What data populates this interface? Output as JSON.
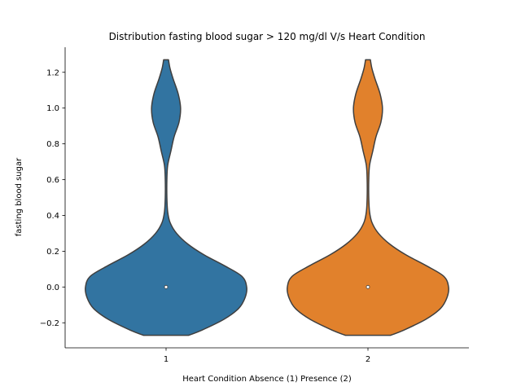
{
  "chart_data": {
    "type": "violin",
    "title": "Distribution fasting blood sugar > 120 mg/dl V/s Heart Condition",
    "xlabel": "Heart Condition Absence (1) Presence (2)",
    "ylabel": "fasting blood sugar",
    "categories": [
      "1",
      "2"
    ],
    "colors": [
      "#3274a1",
      "#e1812c"
    ],
    "ylim": [
      -0.34,
      1.34
    ],
    "yticks": [
      -0.2,
      0.0,
      0.2,
      0.4,
      0.6,
      0.8,
      1.0,
      1.2
    ],
    "ytick_labels": [
      "−0.2",
      "0.0",
      "0.2",
      "0.4",
      "0.6",
      "0.8",
      "1.0",
      "1.2"
    ],
    "grid": false,
    "series": [
      {
        "category": "1",
        "median": 0.0,
        "range": [
          -0.27,
          1.27
        ],
        "density_profile": [
          {
            "y": -0.27,
            "w": 0.28
          },
          {
            "y": -0.24,
            "w": 0.45
          },
          {
            "y": -0.18,
            "w": 0.72
          },
          {
            "y": -0.12,
            "w": 0.9
          },
          {
            "y": -0.06,
            "w": 0.98
          },
          {
            "y": 0.0,
            "w": 1.0
          },
          {
            "y": 0.06,
            "w": 0.94
          },
          {
            "y": 0.12,
            "w": 0.72
          },
          {
            "y": 0.18,
            "w": 0.47
          },
          {
            "y": 0.24,
            "w": 0.27
          },
          {
            "y": 0.3,
            "w": 0.13
          },
          {
            "y": 0.36,
            "w": 0.05
          },
          {
            "y": 0.42,
            "w": 0.02
          },
          {
            "y": 0.5,
            "w": 0.01
          },
          {
            "y": 0.6,
            "w": 0.01
          },
          {
            "y": 0.68,
            "w": 0.02
          },
          {
            "y": 0.76,
            "w": 0.06
          },
          {
            "y": 0.84,
            "w": 0.1
          },
          {
            "y": 0.92,
            "w": 0.16
          },
          {
            "y": 1.0,
            "w": 0.18
          },
          {
            "y": 1.08,
            "w": 0.15
          },
          {
            "y": 1.16,
            "w": 0.09
          },
          {
            "y": 1.22,
            "w": 0.05
          },
          {
            "y": 1.27,
            "w": 0.03
          }
        ]
      },
      {
        "category": "2",
        "median": 0.0,
        "range": [
          -0.27,
          1.27
        ],
        "density_profile": [
          {
            "y": -0.27,
            "w": 0.28
          },
          {
            "y": -0.24,
            "w": 0.45
          },
          {
            "y": -0.18,
            "w": 0.72
          },
          {
            "y": -0.12,
            "w": 0.9
          },
          {
            "y": -0.06,
            "w": 0.98
          },
          {
            "y": 0.0,
            "w": 1.0
          },
          {
            "y": 0.06,
            "w": 0.94
          },
          {
            "y": 0.12,
            "w": 0.72
          },
          {
            "y": 0.18,
            "w": 0.47
          },
          {
            "y": 0.24,
            "w": 0.27
          },
          {
            "y": 0.3,
            "w": 0.13
          },
          {
            "y": 0.36,
            "w": 0.05
          },
          {
            "y": 0.42,
            "w": 0.02
          },
          {
            "y": 0.5,
            "w": 0.01
          },
          {
            "y": 0.6,
            "w": 0.01
          },
          {
            "y": 0.68,
            "w": 0.02
          },
          {
            "y": 0.76,
            "w": 0.06
          },
          {
            "y": 0.84,
            "w": 0.1
          },
          {
            "y": 0.92,
            "w": 0.16
          },
          {
            "y": 1.0,
            "w": 0.18
          },
          {
            "y": 1.08,
            "w": 0.15
          },
          {
            "y": 1.16,
            "w": 0.09
          },
          {
            "y": 1.22,
            "w": 0.05
          },
          {
            "y": 1.27,
            "w": 0.03
          }
        ]
      }
    ]
  }
}
